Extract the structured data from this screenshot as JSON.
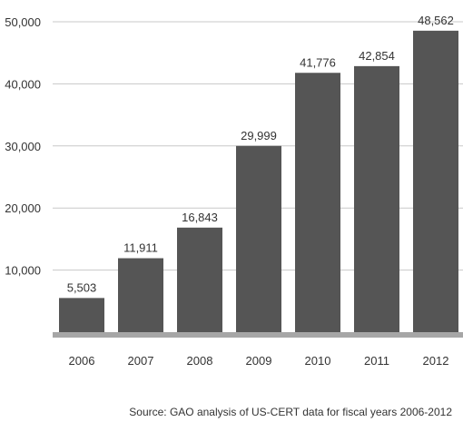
{
  "chart_data": {
    "type": "bar",
    "categories": [
      "2006",
      "2007",
      "2008",
      "2009",
      "2010",
      "2011",
      "2012"
    ],
    "values": [
      5503,
      11911,
      16843,
      29999,
      41776,
      42854,
      48562
    ],
    "value_labels": [
      "5,503",
      "11,911",
      "16,843",
      "29,999",
      "41,776",
      "42,854",
      "48,562"
    ],
    "yticks": [
      10000,
      20000,
      30000,
      40000,
      50000
    ],
    "ytick_labels": [
      "10,000",
      "20,000",
      "30,000",
      "40,000",
      "50,000"
    ],
    "ylim": [
      0,
      50000
    ],
    "grid": true,
    "legend": "none",
    "bar_color": "#555555",
    "grid_color": "#c8c8c8",
    "baseline_color": "#a6a6a6"
  },
  "source_note": "Source: GAO analysis of US-CERT data for fiscal years 2006-2012"
}
